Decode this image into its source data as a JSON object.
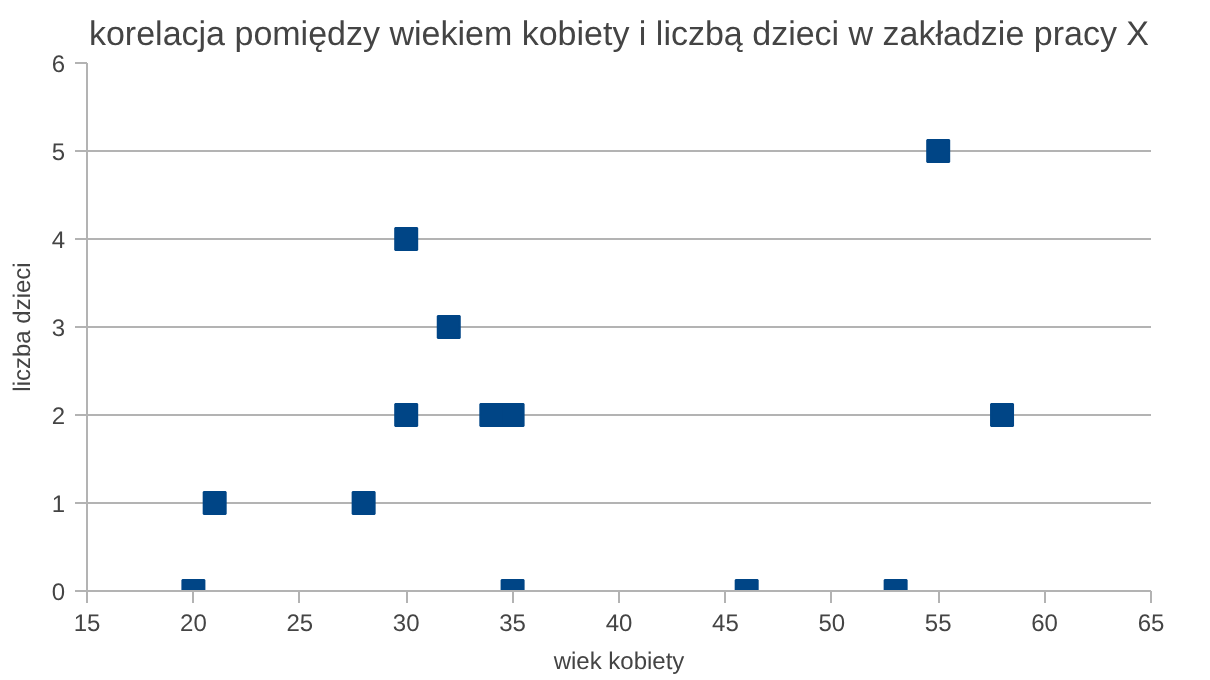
{
  "chart_data": {
    "type": "scatter",
    "title": "korelacja pomiędzy wiekiem kobiety i liczbą dzieci w zakładzie pracy X",
    "xlabel": "wiek kobiety",
    "ylabel": "liczba dzieci",
    "x": [
      20,
      21,
      28,
      30,
      30,
      32,
      34,
      35,
      35,
      46,
      53,
      55,
      58
    ],
    "series": [
      {
        "color": "#004586",
        "values": [
          0,
          1,
          1,
          4,
          2,
          3,
          2,
          2,
          0,
          0,
          0,
          5,
          2
        ]
      }
    ],
    "xlim": [
      15,
      65
    ],
    "xticks": [
      15,
      20,
      25,
      30,
      35,
      40,
      45,
      50,
      55,
      60,
      65
    ],
    "ylim": [
      0,
      6
    ],
    "yticks": [
      0,
      1,
      2,
      3,
      4,
      5,
      6
    ],
    "grid": "y",
    "marker": "square"
  }
}
